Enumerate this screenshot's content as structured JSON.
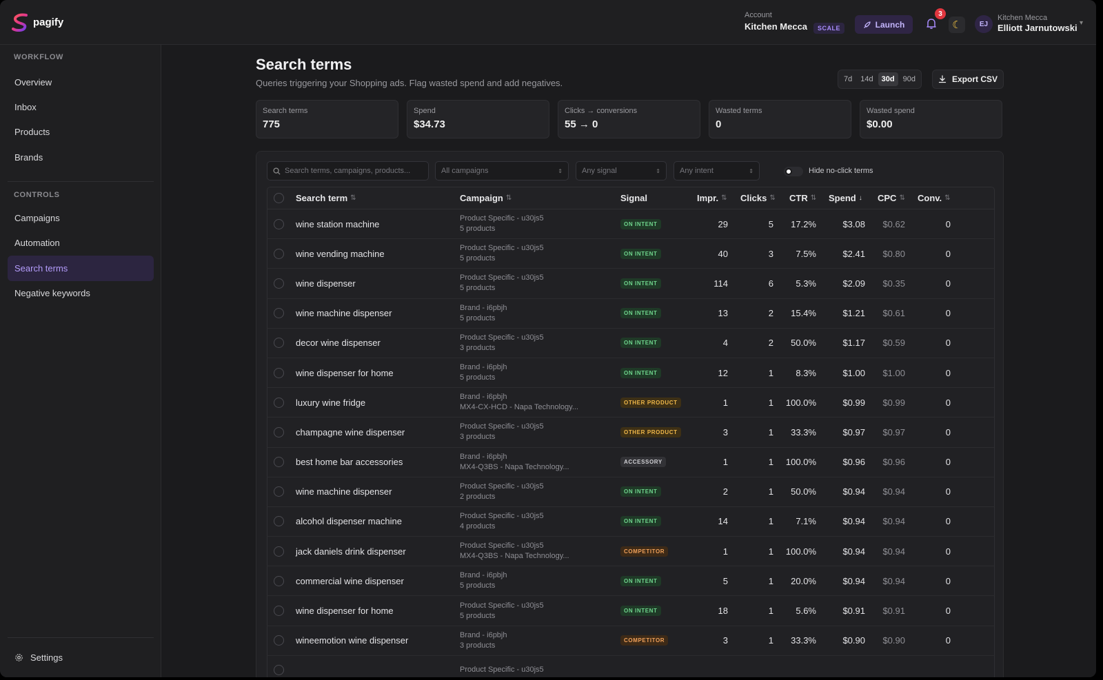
{
  "app": {
    "name": "pagify"
  },
  "account": {
    "label": "Account",
    "name": "Kitchen Mecca",
    "plan": "SCALE"
  },
  "header": {
    "launch_label": "Launch",
    "notification_count": "3",
    "theme_icon": "moon-icon"
  },
  "user": {
    "initials": "EJ",
    "org": "Kitchen Mecca",
    "name": "Elliott Jarnutowski"
  },
  "sidebar": {
    "workflow_label": "WORKFLOW",
    "workflow": [
      {
        "label": "Overview"
      },
      {
        "label": "Inbox"
      },
      {
        "label": "Products"
      },
      {
        "label": "Brands"
      }
    ],
    "controls_label": "CONTROLS",
    "controls": [
      {
        "label": "Campaigns"
      },
      {
        "label": "Automation"
      },
      {
        "label": "Search terms"
      },
      {
        "label": "Negative keywords"
      }
    ],
    "active": "Search terms",
    "settings_label": "Settings"
  },
  "page": {
    "title": "Search terms",
    "subtitle": "Queries triggering your Shopping ads. Flag wasted spend and add negatives.",
    "ranges": [
      "7d",
      "14d",
      "30d",
      "90d"
    ],
    "selected_range": "30d",
    "export_label": "Export CSV"
  },
  "stats": [
    {
      "label": "Search terms",
      "value": "775"
    },
    {
      "label": "Spend",
      "value": "$34.73"
    },
    {
      "label": "Clicks → conversions",
      "value": "55 → 0"
    },
    {
      "label": "Wasted terms",
      "value": "0"
    },
    {
      "label": "Wasted spend",
      "value": "$0.00"
    }
  ],
  "filters": {
    "search_placeholder": "Search terms, campaigns, products...",
    "campaign_select": "All campaigns",
    "signal_select": "Any signal",
    "intent_select": "Any intent",
    "hide_no_click_label": "Hide no-click terms"
  },
  "table": {
    "columns": {
      "term": "Search term",
      "campaign": "Campaign",
      "signal": "Signal",
      "impr": "Impr.",
      "clicks": "Clicks",
      "ctr": "CTR",
      "spend": "Spend",
      "cpc": "CPC",
      "conv": "Conv."
    },
    "rows": [
      {
        "term": "wine station machine",
        "campaign": "Product Specific - u30js5",
        "detail": "5 products",
        "signal": "ON INTENT",
        "impr": "29",
        "clicks": "5",
        "ctr": "17.2%",
        "spend": "$3.08",
        "cpc": "$0.62",
        "conv": "0"
      },
      {
        "term": "wine vending machine",
        "campaign": "Product Specific - u30js5",
        "detail": "5 products",
        "signal": "ON INTENT",
        "impr": "40",
        "clicks": "3",
        "ctr": "7.5%",
        "spend": "$2.41",
        "cpc": "$0.80",
        "conv": "0"
      },
      {
        "term": "wine dispenser",
        "campaign": "Product Specific - u30js5",
        "detail": "5 products",
        "signal": "ON INTENT",
        "impr": "114",
        "clicks": "6",
        "ctr": "5.3%",
        "spend": "$2.09",
        "cpc": "$0.35",
        "conv": "0"
      },
      {
        "term": "wine machine dispenser",
        "campaign": "Brand - i6pbjh",
        "detail": "5 products",
        "signal": "ON INTENT",
        "impr": "13",
        "clicks": "2",
        "ctr": "15.4%",
        "spend": "$1.21",
        "cpc": "$0.61",
        "conv": "0"
      },
      {
        "term": "decor wine dispenser",
        "campaign": "Product Specific - u30js5",
        "detail": "3 products",
        "signal": "ON INTENT",
        "impr": "4",
        "clicks": "2",
        "ctr": "50.0%",
        "spend": "$1.17",
        "cpc": "$0.59",
        "conv": "0"
      },
      {
        "term": "wine dispenser for home",
        "campaign": "Brand - i6pbjh",
        "detail": "5 products",
        "signal": "ON INTENT",
        "impr": "12",
        "clicks": "1",
        "ctr": "8.3%",
        "spend": "$1.00",
        "cpc": "$1.00",
        "conv": "0"
      },
      {
        "term": "luxury wine fridge",
        "campaign": "Brand - i6pbjh",
        "detail": "MX4-CX-HCD - Napa Technology...",
        "signal": "OTHER PRODUCT",
        "impr": "1",
        "clicks": "1",
        "ctr": "100.0%",
        "spend": "$0.99",
        "cpc": "$0.99",
        "conv": "0"
      },
      {
        "term": "champagne wine dispenser",
        "campaign": "Product Specific - u30js5",
        "detail": "3 products",
        "signal": "OTHER PRODUCT",
        "impr": "3",
        "clicks": "1",
        "ctr": "33.3%",
        "spend": "$0.97",
        "cpc": "$0.97",
        "conv": "0"
      },
      {
        "term": "best home bar accessories",
        "campaign": "Brand - i6pbjh",
        "detail": "MX4-Q3BS - Napa Technology...",
        "signal": "ACCESSORY",
        "impr": "1",
        "clicks": "1",
        "ctr": "100.0%",
        "spend": "$0.96",
        "cpc": "$0.96",
        "conv": "0"
      },
      {
        "term": "wine machine dispenser",
        "campaign": "Product Specific - u30js5",
        "detail": "2 products",
        "signal": "ON INTENT",
        "impr": "2",
        "clicks": "1",
        "ctr": "50.0%",
        "spend": "$0.94",
        "cpc": "$0.94",
        "conv": "0"
      },
      {
        "term": "alcohol dispenser machine",
        "campaign": "Product Specific - u30js5",
        "detail": "4 products",
        "signal": "ON INTENT",
        "impr": "14",
        "clicks": "1",
        "ctr": "7.1%",
        "spend": "$0.94",
        "cpc": "$0.94",
        "conv": "0"
      },
      {
        "term": "jack daniels drink dispenser",
        "campaign": "Product Specific - u30js5",
        "detail": "MX4-Q3BS - Napa Technology...",
        "signal": "COMPETITOR",
        "impr": "1",
        "clicks": "1",
        "ctr": "100.0%",
        "spend": "$0.94",
        "cpc": "$0.94",
        "conv": "0"
      },
      {
        "term": "commercial wine dispenser",
        "campaign": "Brand - i6pbjh",
        "detail": "5 products",
        "signal": "ON INTENT",
        "impr": "5",
        "clicks": "1",
        "ctr": "20.0%",
        "spend": "$0.94",
        "cpc": "$0.94",
        "conv": "0"
      },
      {
        "term": "wine dispenser for home",
        "campaign": "Product Specific - u30js5",
        "detail": "5 products",
        "signal": "ON INTENT",
        "impr": "18",
        "clicks": "1",
        "ctr": "5.6%",
        "spend": "$0.91",
        "cpc": "$0.91",
        "conv": "0"
      },
      {
        "term": "wineemotion wine dispenser",
        "campaign": "Brand - i6pbjh",
        "detail": "3 products",
        "signal": "COMPETITOR",
        "impr": "3",
        "clicks": "1",
        "ctr": "33.3%",
        "spend": "$0.90",
        "cpc": "$0.90",
        "conv": "0"
      },
      {
        "term": "",
        "campaign": "Product Specific - u30js5",
        "detail": "",
        "signal": "",
        "impr": "",
        "clicks": "",
        "ctr": "",
        "spend": "",
        "cpc": "",
        "conv": ""
      }
    ]
  },
  "colors": {
    "accent": "#a78bfa",
    "active_nav_bg": "#2c2540",
    "on_intent": "#6fd58d",
    "other_product": "#f0b84a",
    "competitor": "#f0a15a"
  }
}
